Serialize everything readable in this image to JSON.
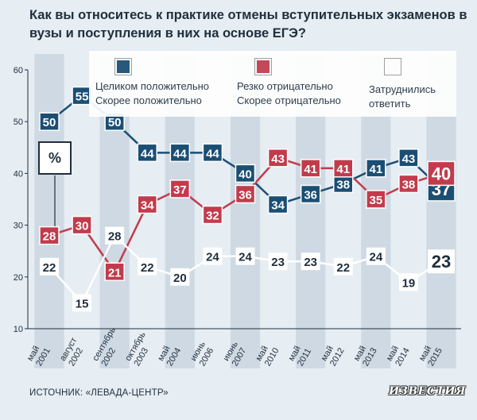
{
  "title": "Как вы относитесь к практике отмены вступительных экзаменов в вузы и поступления в них на основе ЕГЭ?",
  "source": "ИСТОЧНИК: «ЛЕВАДА-ЦЕНТР»",
  "logo": "ИЗВЕСТИЯ",
  "unit_box": "%",
  "legend": {
    "positive": {
      "line1": "Целиком положительно",
      "line2": "Скорее положительно",
      "color": "#1b4e73"
    },
    "negative": {
      "line1": "Резко отрицательно",
      "line2": "Скорее отрицательно",
      "color": "#c23b4c"
    },
    "unsure": {
      "line1": "Затруднились",
      "line2": "ответить",
      "color": "#ffffff"
    }
  },
  "chart_data": {
    "type": "line",
    "ylim": [
      10,
      60
    ],
    "yticks": [
      10,
      20,
      30,
      40,
      50,
      60
    ],
    "grid": false,
    "categories": [
      [
        "май",
        "2001"
      ],
      [
        "август",
        "2002"
      ],
      [
        "сентябрь",
        "2002"
      ],
      [
        "октябрь",
        "2003"
      ],
      [
        "май",
        "2004"
      ],
      [
        "июнь",
        "2006"
      ],
      [
        "июнь",
        "2007"
      ],
      [
        "май",
        "2010"
      ],
      [
        "май",
        "2011"
      ],
      [
        "май",
        "2012"
      ],
      [
        "май",
        "2013"
      ],
      [
        "май",
        "2014"
      ],
      [
        "май",
        "2015"
      ]
    ],
    "series": [
      {
        "key": "positive",
        "values": [
          50,
          55,
          50,
          44,
          44,
          44,
          40,
          34,
          36,
          38,
          41,
          43,
          37
        ],
        "color": "#1b4e73"
      },
      {
        "key": "negative",
        "values": [
          28,
          30,
          21,
          34,
          37,
          32,
          36,
          43,
          41,
          41,
          35,
          38,
          40
        ],
        "color": "#c23b4c"
      },
      {
        "key": "unsure",
        "values": [
          22,
          15,
          28,
          22,
          20,
          24,
          24,
          23,
          23,
          22,
          24,
          19,
          23
        ],
        "color": "#ffffff"
      }
    ]
  }
}
